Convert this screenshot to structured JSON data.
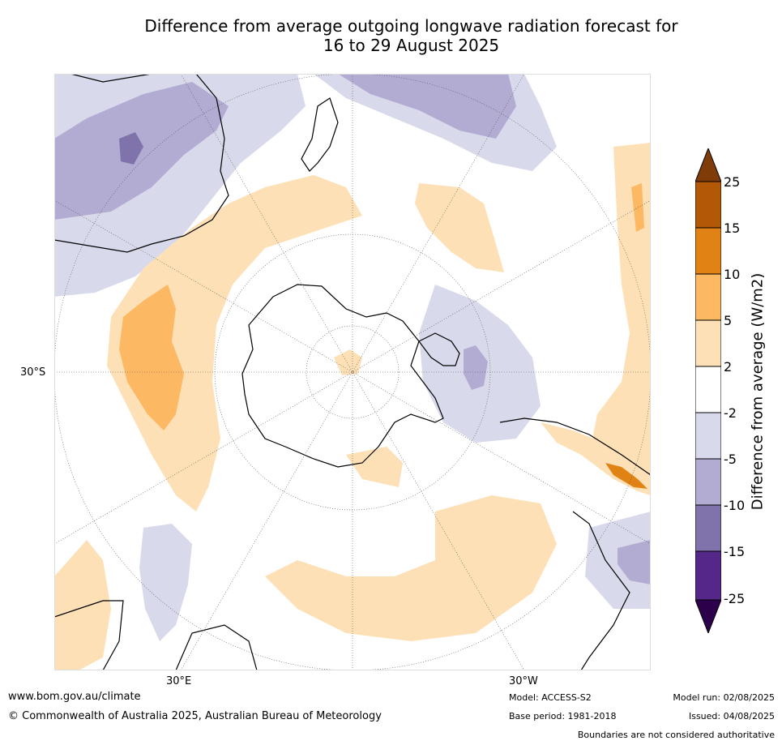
{
  "title_line1": "Difference from average outgoing longwave radiation forecast for",
  "title_line2": "16 to 29 August 2025",
  "axis": {
    "lat_30s": "30°S",
    "lon_30e": "30°E",
    "lon_30w": "30°W"
  },
  "colorbar": {
    "title": "Difference from average (W/m2)",
    "ticks": [
      "25",
      "15",
      "10",
      "5",
      "2",
      "-2",
      "-5",
      "-10",
      "-15",
      "-25"
    ],
    "colors": [
      "#7f3b08",
      "#b35806",
      "#e08214",
      "#fdb863",
      "#fee0b6",
      "#ffffff",
      "#d8daeb",
      "#b2abd2",
      "#8073ac",
      "#542788",
      "#2d004b"
    ]
  },
  "footer": {
    "url": "www.bom.gov.au/climate",
    "copyright": "© Commonwealth of Australia 2025, Australian Bureau of Meteorology",
    "model": "Model: ACCESS-S2",
    "base_period": "Base period: 1981-2018",
    "model_run": "Model run: 02/08/2025",
    "issued": "Issued: 04/08/2025",
    "disclaimer": "Boundaries are not considered authoritative"
  }
}
